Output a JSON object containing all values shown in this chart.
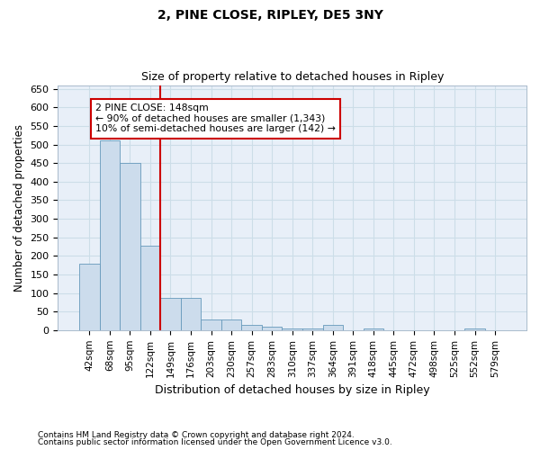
{
  "title": "2, PINE CLOSE, RIPLEY, DE5 3NY",
  "subtitle": "Size of property relative to detached houses in Ripley",
  "xlabel": "Distribution of detached houses by size in Ripley",
  "ylabel": "Number of detached properties",
  "categories": [
    "42sqm",
    "68sqm",
    "95sqm",
    "122sqm",
    "149sqm",
    "176sqm",
    "203sqm",
    "230sqm",
    "257sqm",
    "283sqm",
    "310sqm",
    "337sqm",
    "364sqm",
    "391sqm",
    "418sqm",
    "445sqm",
    "472sqm",
    "498sqm",
    "525sqm",
    "552sqm",
    "579sqm"
  ],
  "values": [
    178,
    510,
    450,
    228,
    88,
    88,
    28,
    28,
    15,
    10,
    5,
    5,
    15,
    0,
    5,
    0,
    0,
    0,
    0,
    5,
    0
  ],
  "bar_color": "#ccdcec",
  "bar_edge_color": "#6699bb",
  "grid_color": "#ccdde8",
  "background_color": "#ffffff",
  "plot_bg_color": "#e8eff8",
  "annotation_box_text": "2 PINE CLOSE: 148sqm\n← 90% of detached houses are smaller (1,343)\n10% of semi-detached houses are larger (142) →",
  "ylim": [
    0,
    660
  ],
  "yticks": [
    0,
    50,
    100,
    150,
    200,
    250,
    300,
    350,
    400,
    450,
    500,
    550,
    600,
    650
  ],
  "footnote1": "Contains HM Land Registry data © Crown copyright and database right 2024.",
  "footnote2": "Contains public sector information licensed under the Open Government Licence v3.0.",
  "vline_color": "#cc0000",
  "vline_x": 4.0,
  "ann_box_color": "#cc0000",
  "title_fontsize": 10,
  "subtitle_fontsize": 9
}
